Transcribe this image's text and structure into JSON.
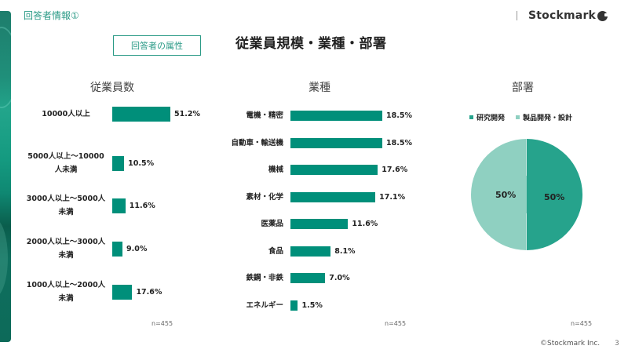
{
  "header": {
    "section_label": "回答者情報①",
    "logo_text": "Stockmark",
    "attribute_box": "回答者の属性",
    "main_title": "従業員規模・業種・部署"
  },
  "colors": {
    "accent": "#2a9a86",
    "bar": "#008f7a",
    "pie_research": "#26a38c",
    "pie_product": "#8fd0c1"
  },
  "chart_data": [
    {
      "type": "bar",
      "orientation": "horizontal",
      "title": "従業員数",
      "categories": [
        "10000人以上",
        "5000人以上～10000人未満",
        "3000人以上～5000人未満",
        "2000人以上～3000人未満",
        "1000人以上～2000人未満"
      ],
      "values": [
        51.2,
        10.5,
        11.6,
        9.0,
        17.6
      ],
      "value_labels": [
        "51.2%",
        "10.5%",
        "11.6%",
        "9.0%",
        "17.6%"
      ],
      "display_labels": [
        [
          "10000人以上"
        ],
        [
          "5000人以上～10000",
          "人未満"
        ],
        [
          "3000人以上～5000人",
          "未満"
        ],
        [
          "2000人以上～3000人",
          "未満"
        ],
        [
          "1000人以上～2000人",
          "未満"
        ]
      ],
      "unit": "%",
      "note": "n=455"
    },
    {
      "type": "bar",
      "orientation": "horizontal",
      "title": "業種",
      "categories": [
        "電機・精密",
        "自動車・輸送機",
        "機械",
        "素材・化学",
        "医薬品",
        "食品",
        "鉄鋼・非鉄",
        "エネルギー"
      ],
      "values": [
        18.5,
        18.5,
        17.6,
        17.1,
        11.6,
        8.1,
        7.0,
        1.5
      ],
      "value_labels": [
        "18.5%",
        "18.5%",
        "17.6%",
        "17.1%",
        "11.6%",
        "8.1%",
        "7.0%",
        "1.5%"
      ],
      "unit": "%",
      "note": "n=455"
    },
    {
      "type": "pie",
      "title": "部署",
      "categories": [
        "研究開発",
        "製品開発・設計"
      ],
      "values": [
        50,
        50
      ],
      "value_labels": [
        "50%",
        "50%"
      ],
      "legend_position": "top",
      "note": "n=455"
    }
  ],
  "footer": {
    "copyright": "©Stockmark Inc.",
    "page": "3"
  }
}
